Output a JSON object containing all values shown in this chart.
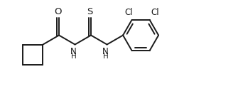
{
  "bg_color": "#ffffff",
  "line_color": "#1a1a1a",
  "line_width": 1.4,
  "font_size": 8.5,
  "figsize": [
    3.42,
    1.32
  ],
  "dpi": 100,
  "xlim": [
    0.0,
    6.84
  ],
  "ylim": [
    0.0,
    2.64
  ]
}
